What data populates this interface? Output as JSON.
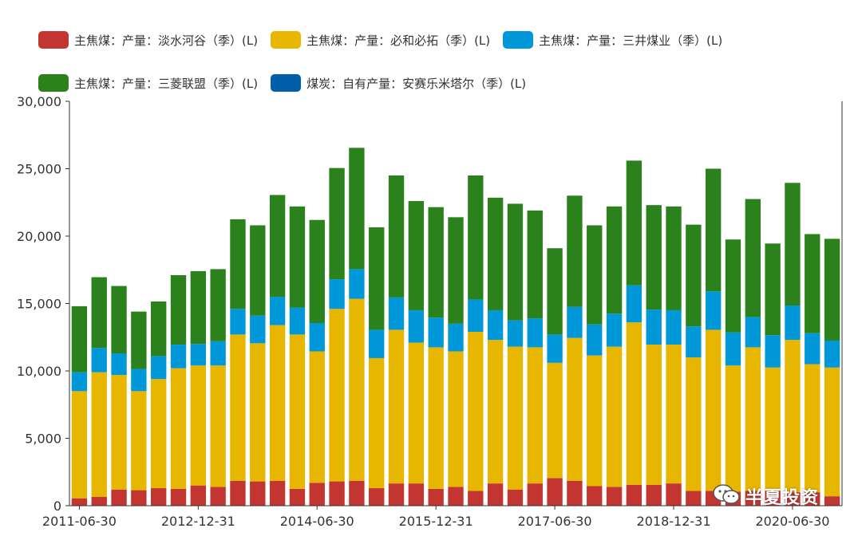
{
  "chart_data": {
    "type": "bar",
    "stacked": true,
    "categories": [
      "2011-06-30",
      "2011-09-30",
      "2011-12-31",
      "2012-03-31",
      "2012-06-30",
      "2012-09-30",
      "2012-12-31",
      "2013-03-31",
      "2013-06-30",
      "2013-09-30",
      "2013-12-31",
      "2014-03-31",
      "2014-06-30",
      "2014-09-30",
      "2014-12-31",
      "2015-03-31",
      "2015-06-30",
      "2015-09-30",
      "2015-12-31",
      "2016-03-31",
      "2016-06-30",
      "2016-09-30",
      "2016-12-31",
      "2017-03-31",
      "2017-06-30",
      "2017-09-30",
      "2017-12-31",
      "2018-03-31",
      "2018-06-30",
      "2018-09-30",
      "2018-12-31",
      "2019-03-31",
      "2019-06-30",
      "2019-09-30",
      "2019-12-31",
      "2020-03-31",
      "2020-06-30",
      "2020-09-30",
      "2020-12-31"
    ],
    "x_tick_labels": [
      "2011-06-30",
      "2012-12-31",
      "2014-06-30",
      "2015-12-31",
      "2017-06-30",
      "2018-12-31",
      "2020-06-30"
    ],
    "series": [
      {
        "name": "主焦煤：产量：淡水河谷（季）(L)",
        "color": "#c23531",
        "values": [
          550,
          650,
          1200,
          1150,
          1300,
          1250,
          1500,
          1400,
          1850,
          1800,
          1850,
          1250,
          1700,
          1800,
          1850,
          1300,
          1650,
          1650,
          1250,
          1400,
          1100,
          1650,
          1200,
          1650,
          2050,
          1850,
          1450,
          1400,
          1550,
          1550,
          1650,
          1100,
          1100,
          1050,
          1100,
          1100,
          1000,
          1000,
          700
        ]
      },
      {
        "name": "主焦煤：产量：必和必拓（季）(L)",
        "color": "#e6b600",
        "values": [
          7950,
          9250,
          8500,
          7350,
          8100,
          8950,
          8900,
          9000,
          10850,
          10250,
          11550,
          11450,
          9750,
          12800,
          13500,
          9650,
          11400,
          10450,
          10500,
          10050,
          11800,
          10650,
          10600,
          10100,
          8550,
          10600,
          9700,
          10400,
          12050,
          10400,
          10300,
          9900,
          11950,
          9350,
          10650,
          9150,
          11300,
          9500,
          9550
        ]
      },
      {
        "name": "主焦煤：产量：三井煤业（季）(L)",
        "color": "#0098d9",
        "values": [
          1400,
          1800,
          1600,
          1650,
          1700,
          1750,
          1600,
          1800,
          1900,
          2050,
          2100,
          2000,
          2100,
          2200,
          2200,
          2100,
          2400,
          2400,
          2200,
          2050,
          2400,
          2200,
          1950,
          2150,
          2100,
          2300,
          2300,
          2450,
          2750,
          2600,
          2550,
          2300,
          2850,
          2450,
          2250,
          2400,
          2550,
          2300,
          2000
        ]
      },
      {
        "name": "主焦煤：产量：三菱联盟（季）(L)",
        "color": "#2b821d",
        "values": [
          4900,
          5250,
          5000,
          4250,
          4050,
          5150,
          5400,
          5350,
          6650,
          6700,
          7550,
          7500,
          7650,
          8250,
          9000,
          7600,
          9050,
          8100,
          8200,
          7900,
          9200,
          8350,
          8650,
          8000,
          6400,
          8250,
          7350,
          7950,
          9250,
          7750,
          7700,
          7550,
          9100,
          6900,
          8750,
          6800,
          9100,
          7350,
          7550
        ]
      },
      {
        "name": "煤炭：自有产量：安赛乐米塔尔（季）(L)",
        "color": "#005eaa",
        "values": [
          0,
          0,
          0,
          0,
          0,
          0,
          0,
          0,
          0,
          0,
          0,
          0,
          0,
          0,
          0,
          0,
          0,
          0,
          0,
          0,
          0,
          0,
          0,
          0,
          0,
          0,
          0,
          0,
          0,
          0,
          0,
          0,
          0,
          0,
          0,
          0,
          0,
          0,
          0
        ]
      }
    ],
    "ylim": [
      0,
      30000
    ],
    "y_ticks": [
      "0",
      "5,000",
      "10,000",
      "15,000",
      "20,000",
      "25,000",
      "30,000"
    ],
    "title": "",
    "xlabel": "",
    "ylabel": "",
    "legend_position": "top"
  },
  "watermark": {
    "text": "半夏投资",
    "icon": "wechat-icon"
  }
}
